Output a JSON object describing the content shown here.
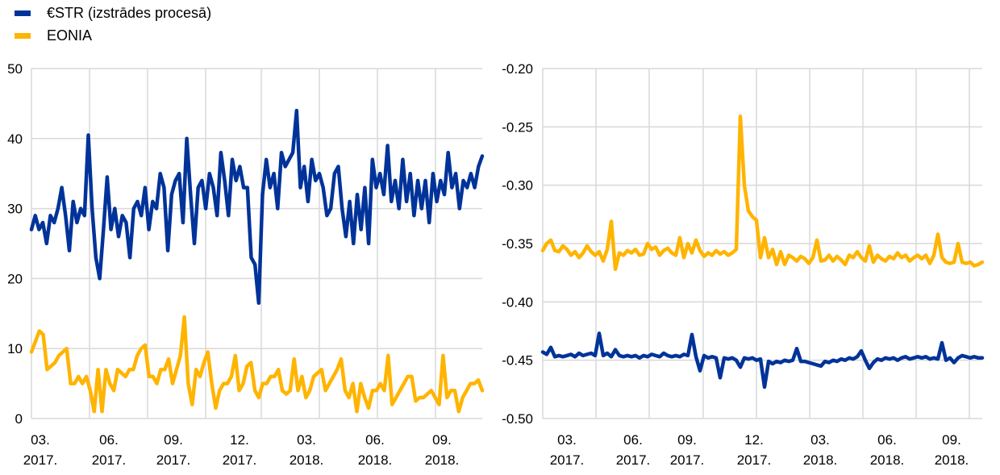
{
  "legend": [
    {
      "label": "€STR (izstrādes procesā)",
      "color": "#003399"
    },
    {
      "label": "EONIA",
      "color": "#FFB400"
    }
  ],
  "chart_data": [
    {
      "type": "line",
      "x_range": [
        "03.2017",
        "10.2018"
      ],
      "xtick_labels": [
        [
          "03.",
          "2017."
        ],
        [
          "06.",
          "2017."
        ],
        [
          "09.",
          "2017."
        ],
        [
          "12.",
          "2017."
        ],
        [
          "03.",
          "2018."
        ],
        [
          "06.",
          "2018."
        ],
        [
          "09.",
          "2018."
        ]
      ],
      "yticks": [
        0,
        10,
        20,
        30,
        40,
        50
      ],
      "ytick_labels": [
        "0",
        "10",
        "20",
        "30",
        "40",
        "50"
      ],
      "ylim": [
        0,
        50
      ],
      "grid": true,
      "series": [
        {
          "name": "€STR (izstrādes procesā)",
          "color": "#003399",
          "values": [
            27,
            29,
            27,
            28,
            25,
            29,
            28,
            30,
            33,
            29,
            24,
            31,
            28,
            30,
            29,
            40.5,
            30,
            23,
            20,
            27,
            34.5,
            27,
            30,
            26,
            29,
            28,
            23,
            30,
            31,
            29,
            33,
            27,
            31,
            30,
            35,
            33,
            24,
            32,
            34,
            35,
            28,
            40,
            32,
            25,
            33,
            34,
            30,
            35,
            33,
            29,
            38,
            34,
            29,
            37,
            34,
            36,
            33,
            33,
            23,
            22,
            16.5,
            32,
            37,
            33,
            35,
            30,
            38,
            36,
            37,
            38,
            44,
            33,
            36,
            31,
            37,
            34,
            35,
            33,
            29,
            30,
            35,
            36,
            30,
            26,
            31,
            25,
            32,
            27,
            33,
            25,
            37,
            33,
            35,
            32,
            39,
            31,
            34,
            30,
            37,
            31,
            35,
            29,
            34,
            30,
            34,
            28,
            35,
            31,
            34,
            32,
            38,
            33,
            35,
            30,
            34,
            33,
            35,
            33,
            36,
            37.5
          ]
        },
        {
          "name": "EONIA",
          "color": "#FFB400",
          "values": [
            9.5,
            11,
            12.5,
            12,
            7,
            7.5,
            8,
            9,
            9.5,
            10,
            5,
            5,
            6,
            5,
            6,
            4,
            1,
            7,
            1,
            7,
            5,
            4,
            7,
            6.5,
            6,
            7,
            7,
            9,
            10,
            10.5,
            6,
            6,
            5,
            7,
            7,
            8.5,
            5,
            7,
            9,
            14.5,
            5,
            2,
            7,
            6,
            8,
            9.5,
            5,
            1.5,
            4,
            5,
            5,
            6,
            9,
            4,
            5,
            7.5,
            8,
            4,
            3,
            5,
            5,
            6,
            6,
            7,
            4,
            3.5,
            4,
            8.5,
            4,
            6,
            3,
            4,
            6,
            6.5,
            7,
            4,
            5,
            6,
            7,
            8.5,
            4,
            3,
            5,
            1,
            5,
            3,
            1.5,
            4,
            4,
            5,
            4,
            9,
            2,
            3,
            4,
            5,
            6,
            6,
            2.5,
            3,
            3,
            3.5,
            4,
            3,
            2,
            9,
            3,
            4,
            4,
            1,
            3,
            4,
            5,
            5,
            5.5,
            4
          ]
        }
      ]
    },
    {
      "type": "line",
      "x_range": [
        "03.2017",
        "10.2018"
      ],
      "xtick_labels": [
        [
          "03.",
          "2017."
        ],
        [
          "06.",
          "2017."
        ],
        [
          "09.",
          "2017."
        ],
        [
          "12.",
          "2017."
        ],
        [
          "03.",
          "2018."
        ],
        [
          "06.",
          "2018."
        ],
        [
          "09.",
          "2018."
        ]
      ],
      "yticks": [
        -0.5,
        -0.45,
        -0.4,
        -0.35,
        -0.3,
        -0.25,
        -0.2
      ],
      "ytick_labels": [
        "-0.50",
        "-0.45",
        "-0.40",
        "-0.35",
        "-0.30",
        "-0.25",
        "-0.20"
      ],
      "ylim": [
        -0.5,
        -0.2
      ],
      "grid": true,
      "series": [
        {
          "name": "EONIA",
          "color": "#FFB400",
          "values": [
            -0.356,
            -0.35,
            -0.347,
            -0.356,
            -0.357,
            -0.352,
            -0.355,
            -0.36,
            -0.357,
            -0.362,
            -0.358,
            -0.352,
            -0.357,
            -0.36,
            -0.357,
            -0.365,
            -0.355,
            -0.331,
            -0.372,
            -0.358,
            -0.36,
            -0.356,
            -0.358,
            -0.355,
            -0.36,
            -0.359,
            -0.35,
            -0.355,
            -0.353,
            -0.36,
            -0.356,
            -0.354,
            -0.358,
            -0.36,
            -0.345,
            -0.362,
            -0.35,
            -0.358,
            -0.347,
            -0.356,
            -0.361,
            -0.358,
            -0.36,
            -0.356,
            -0.359,
            -0.357,
            -0.36,
            -0.358,
            -0.355,
            -0.241,
            -0.3,
            -0.322,
            -0.327,
            -0.33,
            -0.362,
            -0.345,
            -0.362,
            -0.355,
            -0.368,
            -0.357,
            -0.368,
            -0.36,
            -0.362,
            -0.365,
            -0.361,
            -0.363,
            -0.367,
            -0.362,
            -0.347,
            -0.365,
            -0.364,
            -0.36,
            -0.365,
            -0.361,
            -0.364,
            -0.368,
            -0.36,
            -0.362,
            -0.357,
            -0.362,
            -0.365,
            -0.352,
            -0.366,
            -0.36,
            -0.363,
            -0.365,
            -0.361,
            -0.363,
            -0.358,
            -0.362,
            -0.36,
            -0.365,
            -0.362,
            -0.36,
            -0.363,
            -0.36,
            -0.367,
            -0.36,
            -0.342,
            -0.362,
            -0.366,
            -0.367,
            -0.366,
            -0.35,
            -0.366,
            -0.367,
            -0.366,
            -0.369,
            -0.368,
            -0.366
          ]
        },
        {
          "name": "€STR (izstrādes procesā)",
          "color": "#003399",
          "values": [
            -0.443,
            -0.445,
            -0.439,
            -0.447,
            -0.446,
            -0.447,
            -0.446,
            -0.445,
            -0.447,
            -0.444,
            -0.446,
            -0.445,
            -0.444,
            -0.446,
            -0.427,
            -0.446,
            -0.444,
            -0.447,
            -0.441,
            -0.446,
            -0.447,
            -0.446,
            -0.447,
            -0.446,
            -0.448,
            -0.446,
            -0.447,
            -0.445,
            -0.446,
            -0.447,
            -0.444,
            -0.446,
            -0.447,
            -0.446,
            -0.447,
            -0.445,
            -0.446,
            -0.428,
            -0.447,
            -0.459,
            -0.446,
            -0.448,
            -0.447,
            -0.448,
            -0.465,
            -0.448,
            -0.449,
            -0.448,
            -0.45,
            -0.456,
            -0.448,
            -0.449,
            -0.448,
            -0.45,
            -0.449,
            -0.473,
            -0.451,
            -0.453,
            -0.451,
            -0.452,
            -0.45,
            -0.451,
            -0.45,
            -0.44,
            -0.451,
            -0.451,
            -0.452,
            -0.453,
            -0.454,
            -0.455,
            -0.451,
            -0.452,
            -0.45,
            -0.451,
            -0.449,
            -0.45,
            -0.448,
            -0.449,
            -0.447,
            -0.442,
            -0.45,
            -0.457,
            -0.452,
            -0.449,
            -0.45,
            -0.448,
            -0.449,
            -0.448,
            -0.45,
            -0.448,
            -0.447,
            -0.449,
            -0.448,
            -0.447,
            -0.448,
            -0.447,
            -0.449,
            -0.448,
            -0.449,
            -0.435,
            -0.45,
            -0.448,
            -0.452,
            -0.448,
            -0.446,
            -0.447,
            -0.448,
            -0.447,
            -0.448,
            -0.448
          ]
        }
      ]
    }
  ]
}
